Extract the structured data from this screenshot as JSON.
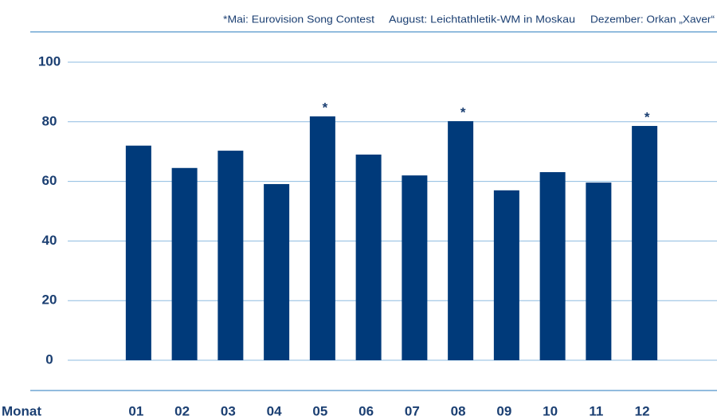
{
  "chart_data": {
    "type": "bar",
    "annotations": [
      "*Mai: Eurovision Song Contest",
      "August: Leichtathletik-WM in Moskau",
      "Dezember: Orkan „Xaver“"
    ],
    "x_label": "Monat",
    "categories": [
      "01",
      "02",
      "03",
      "04",
      "05",
      "06",
      "07",
      "08",
      "09",
      "10",
      "11",
      "12"
    ],
    "values": [
      72,
      64.5,
      70.3,
      59.1,
      81.8,
      69,
      62,
      80.2,
      57,
      63.1,
      59.6,
      78.6
    ],
    "markers": [
      null,
      null,
      null,
      null,
      "*",
      null,
      null,
      "*",
      null,
      null,
      null,
      "*"
    ],
    "color": "#003a7a",
    "ylim": [
      0,
      100
    ],
    "yticks": [
      0,
      20,
      40,
      60,
      80,
      100
    ],
    "grid": true
  }
}
